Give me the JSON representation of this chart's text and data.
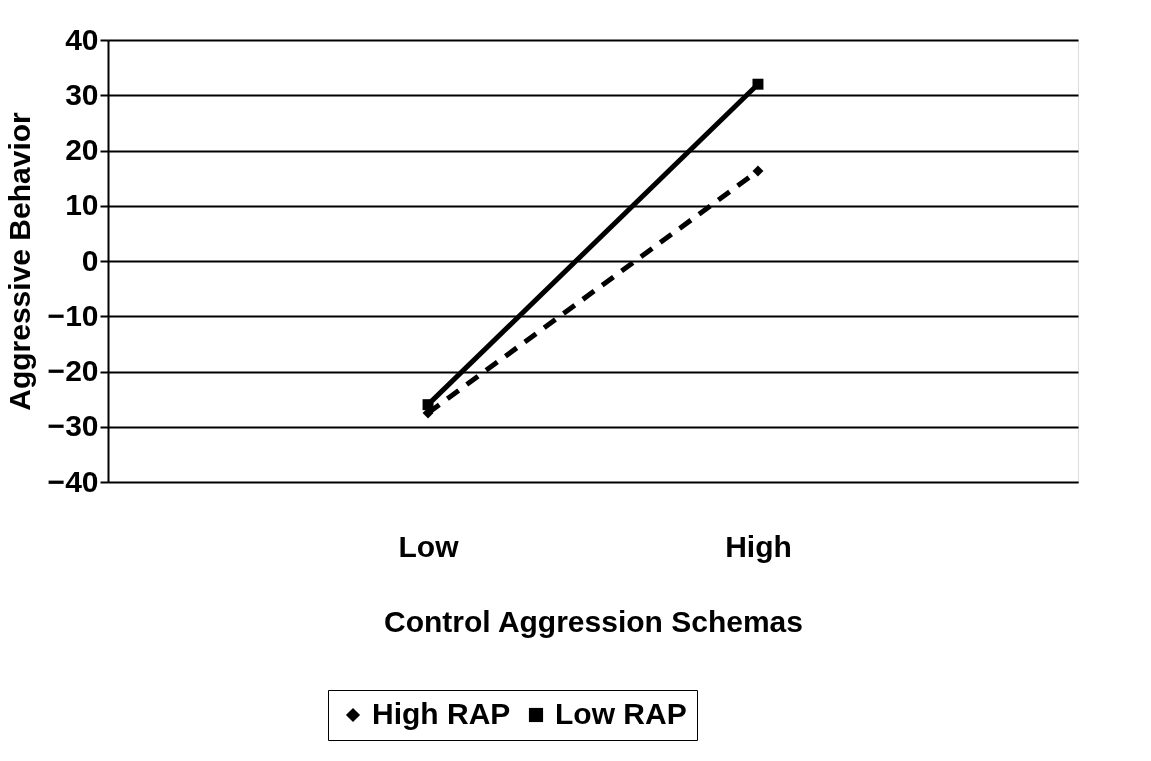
{
  "chart_data": {
    "type": "line",
    "xlabel": "Control Aggression Schemas",
    "ylabel": "Aggressive Behavior",
    "categories": [
      "Low",
      "High"
    ],
    "series": [
      {
        "name": "High RAP",
        "color": "#000000",
        "values": [
          -27.5,
          16.3
        ],
        "marker": "diamond",
        "line_style": "dashed"
      },
      {
        "name": "Low RAP",
        "color": "#000000",
        "values": [
          -26,
          32
        ],
        "marker": "square",
        "line_style": "solid"
      }
    ],
    "ylim": [
      -40,
      40
    ],
    "yticks": [
      -40,
      -30,
      -20,
      -10,
      0,
      10,
      20,
      30,
      40
    ],
    "grid": "y",
    "legend": "bottom"
  }
}
